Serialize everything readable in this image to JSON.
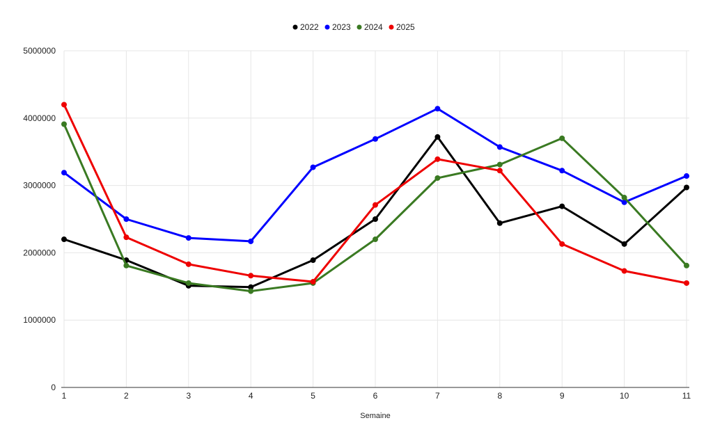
{
  "chart_data": {
    "type": "line",
    "title": "",
    "xlabel": "Semaine",
    "ylabel": "",
    "x": [
      1,
      2,
      3,
      4,
      5,
      6,
      7,
      8,
      9,
      10,
      11
    ],
    "ylim": [
      0,
      5000000
    ],
    "yticks": [
      0,
      1000000,
      2000000,
      3000000,
      4000000,
      5000000
    ],
    "grid": true,
    "legend_position": "top-center",
    "series": [
      {
        "name": "2022",
        "color": "#000000",
        "values": [
          2200000,
          1890000,
          1510000,
          1490000,
          1890000,
          2500000,
          3720000,
          2440000,
          2690000,
          2130000,
          2970000
        ]
      },
      {
        "name": "2023",
        "color": "#0000ff",
        "values": [
          3190000,
          2500000,
          2220000,
          2170000,
          3270000,
          3690000,
          4140000,
          3570000,
          3220000,
          2750000,
          3140000
        ]
      },
      {
        "name": "2024",
        "color": "#3a7a22",
        "values": [
          3910000,
          1810000,
          1550000,
          1430000,
          1550000,
          2200000,
          3110000,
          3310000,
          3700000,
          2820000,
          1810000
        ]
      },
      {
        "name": "2025",
        "color": "#ee0000",
        "values": [
          4200000,
          2230000,
          1830000,
          1660000,
          1570000,
          2710000,
          3390000,
          3220000,
          2130000,
          1730000,
          1550000
        ]
      }
    ]
  }
}
